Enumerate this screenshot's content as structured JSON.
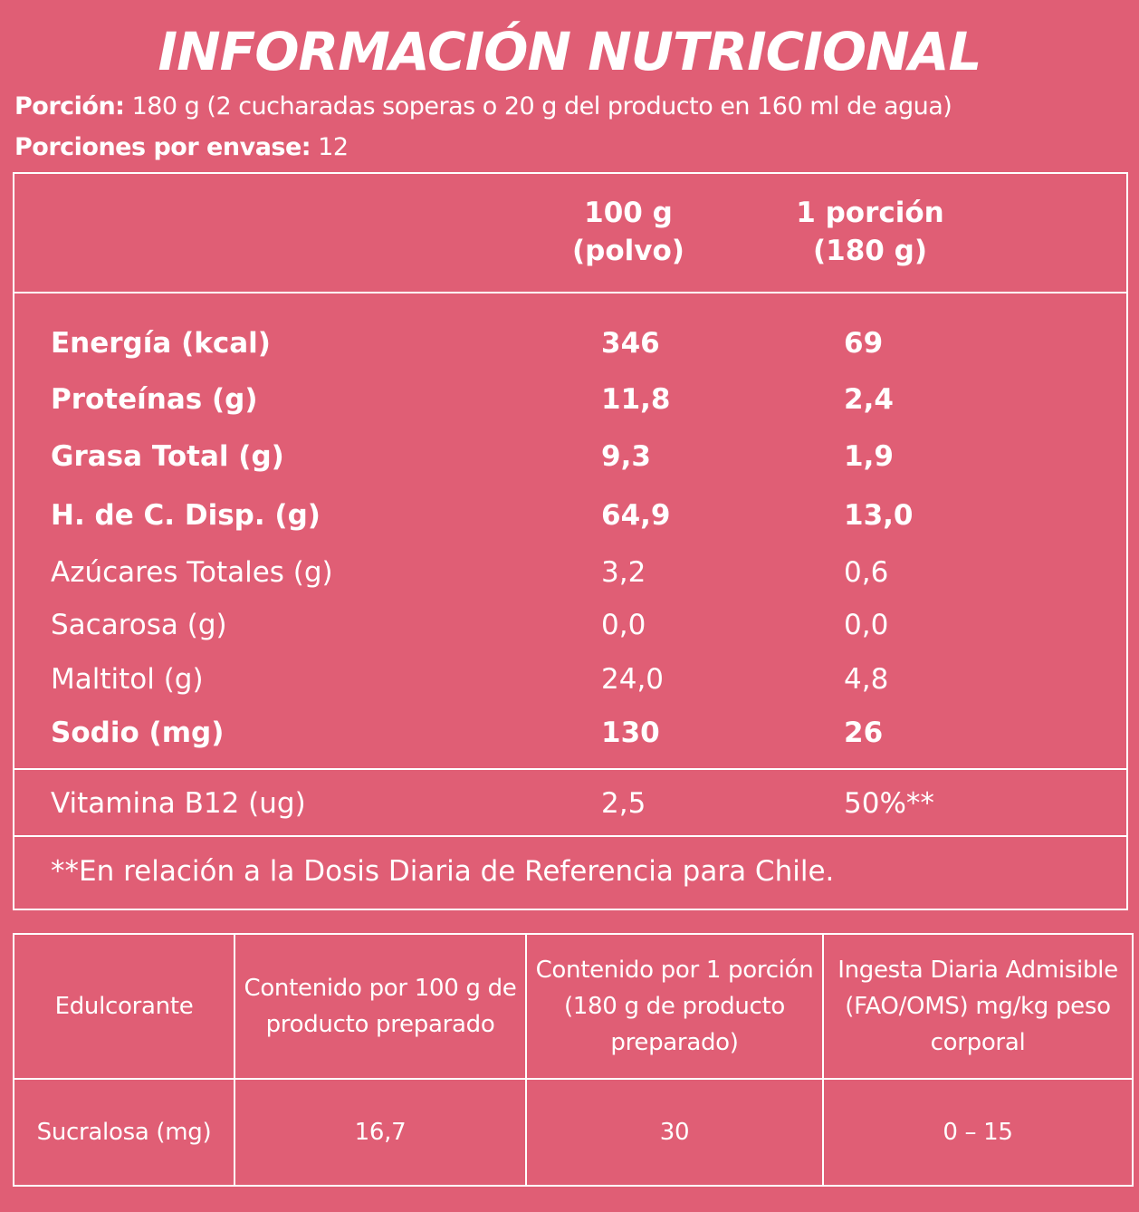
{
  "title": "INFORMACIÓN NUTRICIONAL",
  "serving": {
    "portion_label": "Porción:",
    "portion_value": " 180 g (2 cucharadas soperas o 20 g del producto en 160 ml de agua)",
    "per_container_label": "Porciones por envase:",
    "per_container_value": " 12"
  },
  "nutrition": {
    "col1_line1": "100 g",
    "col1_line2": "(polvo)",
    "col2_line1": "1 porción",
    "col2_line2": "(180 g)",
    "rows": [
      {
        "label": "Energía (kcal)",
        "per100": "346",
        "perPortion": "69"
      },
      {
        "label": "Proteínas (g)",
        "per100": "11,8",
        "perPortion": "2,4"
      },
      {
        "label": "Grasa Total (g)",
        "per100": "9,3",
        "perPortion": "1,9"
      },
      {
        "label": "H. de C. Disp. (g)",
        "per100": "64,9",
        "perPortion": "13,0"
      },
      {
        "label": "Azúcares Totales (g)",
        "per100": "3,2",
        "perPortion": "0,6"
      },
      {
        "label": "Sacarosa (g)",
        "per100": "0,0",
        "perPortion": "0,0"
      },
      {
        "label": "Maltitol (g)",
        "per100": "24,0",
        "perPortion": "4,8"
      },
      {
        "label": "Sodio (mg)",
        "per100": "130",
        "perPortion": "26"
      }
    ],
    "vitamin": {
      "label": "Vitamina B12 (ug)",
      "per100": "2,5",
      "perPortion": "50%**"
    },
    "note": "**En relación a la Dosis Diaria de Referencia para Chile."
  },
  "sweetener": {
    "headers": [
      "Edulcorante",
      "Contenido por 100 g de producto preparado",
      "Contenido por 1 porción (180 g de producto preparado)",
      "Ingesta Diaria Admisible (FAO/OMS) mg/kg peso corporal"
    ],
    "row": [
      "Sucralosa (mg)",
      "16,7",
      "30",
      "0 – 15"
    ]
  }
}
